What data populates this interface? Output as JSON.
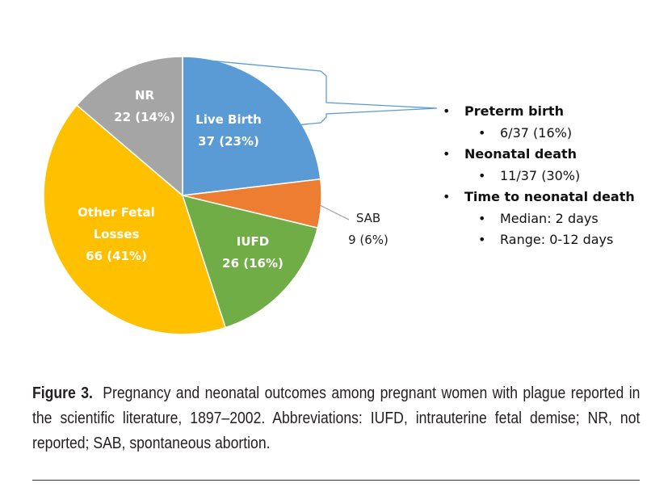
{
  "chart_data": {
    "type": "pie",
    "title": "",
    "slices": [
      {
        "key": "live",
        "name": "Live Birth",
        "label_lines": [
          "Live Birth",
          "37 (23%)"
        ],
        "value": 37,
        "percent": 23,
        "color": "#5b9bd5"
      },
      {
        "key": "sab",
        "name": "SAB",
        "label_lines": [
          "SAB",
          "9 (6%)"
        ],
        "value": 9,
        "percent": 6,
        "color": "#ed7d31"
      },
      {
        "key": "iufd",
        "name": "IUFD",
        "label_lines": [
          "IUFD",
          "26 (16%)"
        ],
        "value": 26,
        "percent": 16,
        "color": "#70ad47"
      },
      {
        "key": "other",
        "name": "Other Fetal Losses",
        "label_lines": [
          "Other Fetal",
          "Losses",
          "66 (41%)"
        ],
        "value": 66,
        "percent": 41,
        "color": "#ffc000"
      },
      {
        "key": "nr",
        "name": "NR",
        "label_lines": [
          "NR",
          "22 (14%)"
        ],
        "value": 22,
        "percent": 14,
        "color": "#a5a5a5"
      }
    ],
    "callout": {
      "target": "Live Birth",
      "items": [
        {
          "heading": "Preterm birth",
          "details": [
            "6/37 (16%)"
          ]
        },
        {
          "heading": "Neonatal death",
          "details": [
            "11/37 (30%)"
          ]
        },
        {
          "heading": "Time to neonatal death",
          "details": [
            "Median: 2 days",
            "Range: 0-12 days"
          ]
        }
      ]
    }
  },
  "caption": {
    "figure_label": "Figure 3.",
    "text": "Pregnancy and neonatal outcomes among pregnant women with plague reported in the scientific literature, 1897–2002. Abbreviations: IUFD, intrauterine fetal demise; NR, not reported; SAB, spontaneous abortion."
  }
}
